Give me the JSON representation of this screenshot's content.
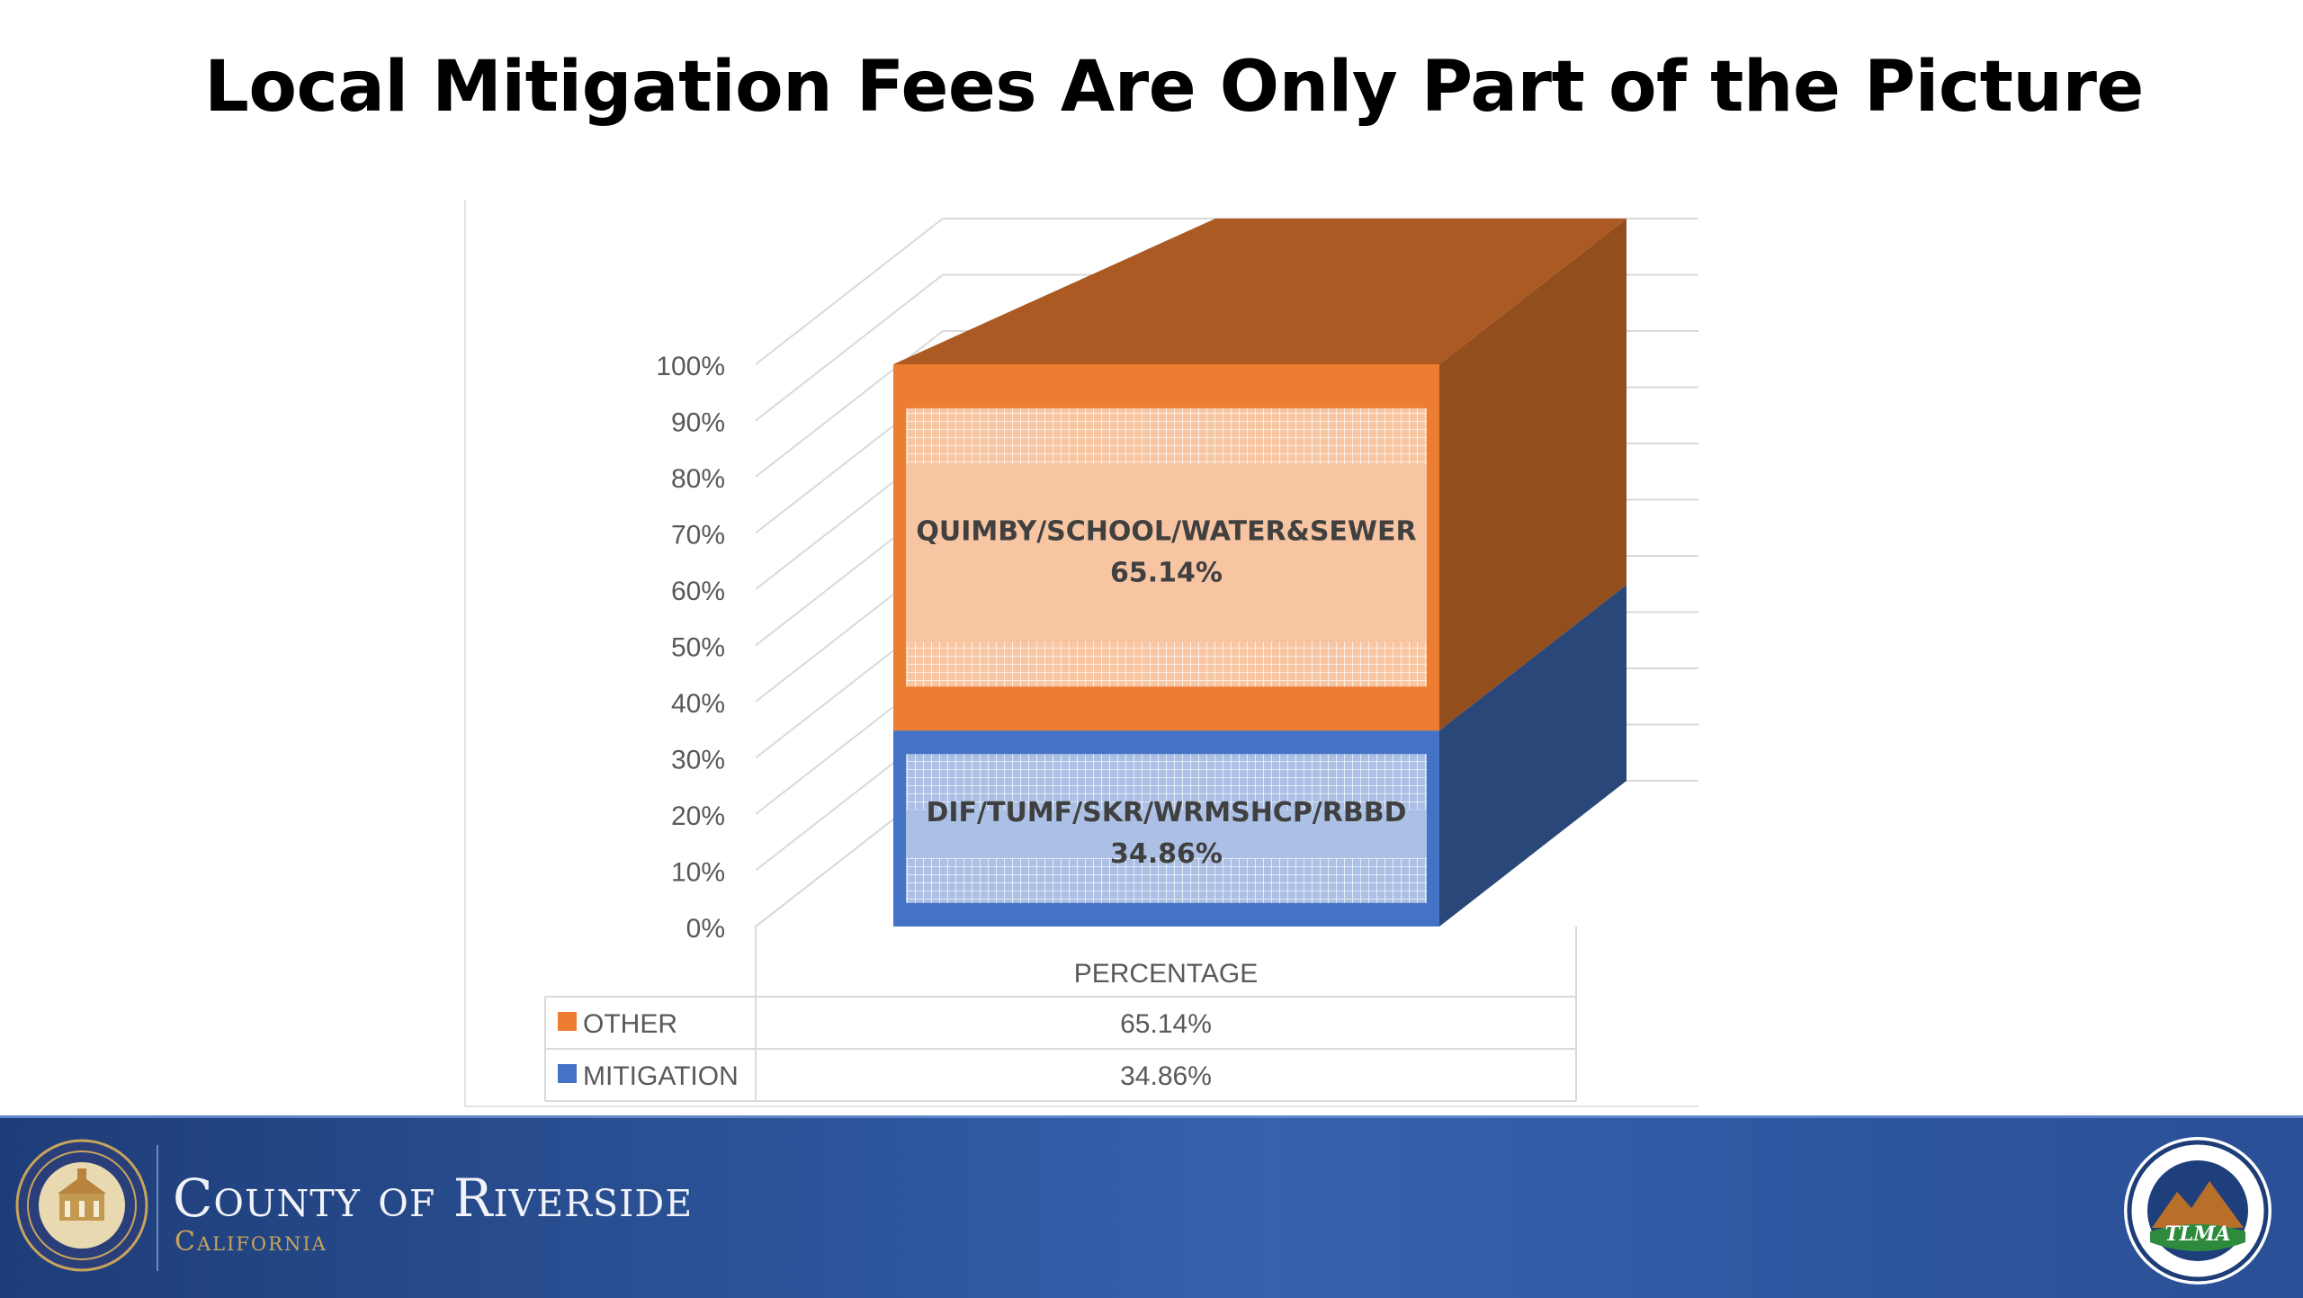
{
  "slide": {
    "title": "Local Mitigation Fees Are Only Part of the Picture"
  },
  "chart_data": {
    "type": "bar",
    "stacked": true,
    "three_d": true,
    "categories": [
      "PERCENTAGE"
    ],
    "series": [
      {
        "name": "MITIGATION",
        "values": [
          34.86
        ],
        "value_label": "34.86%",
        "color": "#4472c4",
        "segment_label": "DIF/TUMF/SKR/WRMSHCP/RBBD",
        "segment_value_label": "34.86%"
      },
      {
        "name": "OTHER",
        "values": [
          65.14
        ],
        "value_label": "65.14%",
        "color": "#ed7d31",
        "segment_label": "QUIMBY/SCHOOL/WATER&SEWER",
        "segment_value_label": "65.14%"
      }
    ],
    "yticks": [
      "0%",
      "10%",
      "20%",
      "30%",
      "40%",
      "50%",
      "60%",
      "70%",
      "80%",
      "90%",
      "100%"
    ],
    "ylim": [
      0,
      100
    ],
    "grid": true,
    "data_table": {
      "header": "PERCENTAGE",
      "rows": [
        {
          "name": "OTHER",
          "value": "65.14%",
          "color": "#ed7d31"
        },
        {
          "name": "MITIGATION",
          "value": "34.86%",
          "color": "#4472c4"
        }
      ]
    }
  },
  "footer": {
    "county_name": "County of Riverside",
    "county_state": "California",
    "seal_icon": "county-seal-icon",
    "logo_icon": "tlma-logo-icon",
    "logo_text": "TLMA"
  },
  "colors": {
    "other": "#ed7d31",
    "mitigation": "#4472c4",
    "footer_blue": "#2f5597"
  }
}
